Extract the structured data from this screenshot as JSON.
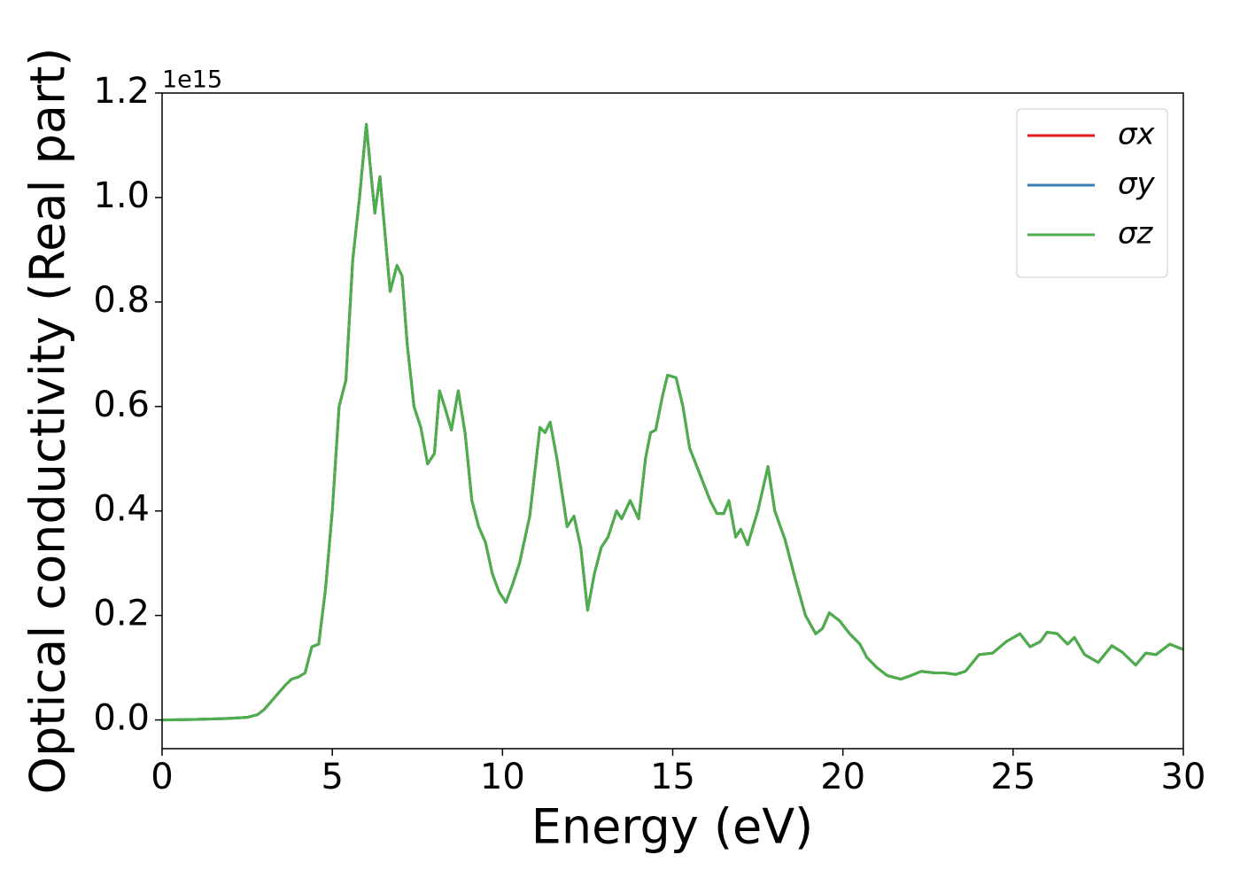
{
  "chart_data": {
    "type": "line",
    "xlabel": "Energy (eV)",
    "ylabel": "Optical conductivity (Real part)",
    "y_offset_label": "1e15",
    "xlim": [
      0,
      30
    ],
    "xticks": [
      0,
      5,
      10,
      15,
      20,
      25,
      30
    ],
    "ylim": [
      -0.055,
      1.2
    ],
    "yticks": [
      {
        "value": 0,
        "label": "0.0"
      },
      0.2,
      0.4,
      0.6,
      0.8,
      {
        "value": 1,
        "label": "1.0"
      },
      1.2
    ],
    "grid": false,
    "legend": "upper right",
    "x": [
      0,
      1,
      2,
      2.5,
      2.8,
      3.0,
      3.2,
      3.4,
      3.6,
      3.8,
      4.0,
      4.2,
      4.4,
      4.6,
      4.8,
      5.0,
      5.2,
      5.4,
      5.6,
      5.8,
      6.0,
      6.1,
      6.25,
      6.4,
      6.55,
      6.7,
      6.9,
      7.05,
      7.2,
      7.4,
      7.6,
      7.8,
      8.0,
      8.15,
      8.3,
      8.5,
      8.7,
      8.9,
      9.1,
      9.3,
      9.5,
      9.7,
      9.9,
      10.1,
      10.3,
      10.5,
      10.8,
      11.1,
      11.25,
      11.4,
      11.6,
      11.9,
      12.1,
      12.3,
      12.5,
      12.7,
      12.9,
      13.1,
      13.35,
      13.5,
      13.75,
      14.0,
      14.2,
      14.35,
      14.5,
      14.7,
      14.85,
      15.1,
      15.3,
      15.5,
      15.8,
      16.1,
      16.3,
      16.5,
      16.65,
      16.85,
      17.0,
      17.2,
      17.5,
      17.8,
      18.0,
      18.3,
      18.6,
      18.9,
      19.2,
      19.4,
      19.6,
      19.9,
      20.2,
      20.5,
      20.7,
      21.0,
      21.3,
      21.7,
      22.0,
      22.3,
      22.7,
      23.0,
      23.3,
      23.6,
      24.0,
      24.4,
      24.8,
      25.2,
      25.5,
      25.8,
      26.0,
      26.3,
      26.6,
      26.8,
      27.1,
      27.5,
      27.9,
      28.2,
      28.6,
      28.9,
      29.2,
      29.6,
      30.0
    ],
    "series": [
      {
        "name": "σx",
        "color": "#e41a1c",
        "values": [
          0,
          0.001,
          0.003,
          0.005,
          0.01,
          0.02,
          0.035,
          0.05,
          0.065,
          0.078,
          0.082,
          0.09,
          0.14,
          0.145,
          0.25,
          0.4,
          0.6,
          0.65,
          0.88,
          1.0,
          1.14,
          1.07,
          0.97,
          1.04,
          0.93,
          0.82,
          0.87,
          0.85,
          0.72,
          0.6,
          0.56,
          0.49,
          0.51,
          0.63,
          0.6,
          0.555,
          0.63,
          0.55,
          0.42,
          0.37,
          0.34,
          0.28,
          0.245,
          0.225,
          0.26,
          0.3,
          0.39,
          0.56,
          0.55,
          0.57,
          0.5,
          0.37,
          0.39,
          0.33,
          0.21,
          0.28,
          0.33,
          0.35,
          0.4,
          0.385,
          0.42,
          0.385,
          0.5,
          0.55,
          0.555,
          0.62,
          0.66,
          0.655,
          0.6,
          0.52,
          0.47,
          0.42,
          0.395,
          0.395,
          0.42,
          0.35,
          0.365,
          0.335,
          0.4,
          0.485,
          0.4,
          0.345,
          0.27,
          0.2,
          0.165,
          0.175,
          0.205,
          0.19,
          0.165,
          0.145,
          0.12,
          0.1,
          0.085,
          0.078,
          0.085,
          0.093,
          0.09,
          0.09,
          0.087,
          0.093,
          0.125,
          0.128,
          0.15,
          0.165,
          0.14,
          0.15,
          0.168,
          0.165,
          0.145,
          0.158,
          0.125,
          0.11,
          0.142,
          0.13,
          0.105,
          0.128,
          0.125,
          0.145,
          0.135
        ]
      },
      {
        "name": "σy",
        "color": "#377eb8",
        "values": [
          0,
          0.001,
          0.003,
          0.005,
          0.01,
          0.02,
          0.035,
          0.05,
          0.065,
          0.078,
          0.082,
          0.09,
          0.14,
          0.145,
          0.25,
          0.4,
          0.6,
          0.65,
          0.88,
          1.0,
          1.14,
          1.07,
          0.97,
          1.04,
          0.93,
          0.82,
          0.87,
          0.85,
          0.72,
          0.6,
          0.56,
          0.49,
          0.51,
          0.63,
          0.6,
          0.555,
          0.63,
          0.55,
          0.42,
          0.37,
          0.34,
          0.28,
          0.245,
          0.225,
          0.26,
          0.3,
          0.39,
          0.56,
          0.55,
          0.57,
          0.5,
          0.37,
          0.39,
          0.33,
          0.21,
          0.28,
          0.33,
          0.35,
          0.4,
          0.385,
          0.42,
          0.385,
          0.5,
          0.55,
          0.555,
          0.62,
          0.66,
          0.655,
          0.6,
          0.52,
          0.47,
          0.42,
          0.395,
          0.395,
          0.42,
          0.35,
          0.365,
          0.335,
          0.4,
          0.485,
          0.4,
          0.345,
          0.27,
          0.2,
          0.165,
          0.175,
          0.205,
          0.19,
          0.165,
          0.145,
          0.12,
          0.1,
          0.085,
          0.078,
          0.085,
          0.093,
          0.09,
          0.09,
          0.087,
          0.093,
          0.125,
          0.128,
          0.15,
          0.165,
          0.14,
          0.15,
          0.168,
          0.165,
          0.145,
          0.158,
          0.125,
          0.11,
          0.142,
          0.13,
          0.105,
          0.128,
          0.125,
          0.145,
          0.135
        ]
      },
      {
        "name": "σz",
        "color": "#4daf4a",
        "values": [
          0,
          0.001,
          0.003,
          0.005,
          0.01,
          0.02,
          0.035,
          0.05,
          0.065,
          0.078,
          0.082,
          0.09,
          0.14,
          0.145,
          0.25,
          0.4,
          0.6,
          0.65,
          0.88,
          1.0,
          1.14,
          1.07,
          0.97,
          1.04,
          0.93,
          0.82,
          0.87,
          0.85,
          0.72,
          0.6,
          0.56,
          0.49,
          0.51,
          0.63,
          0.6,
          0.555,
          0.63,
          0.55,
          0.42,
          0.37,
          0.34,
          0.28,
          0.245,
          0.225,
          0.26,
          0.3,
          0.39,
          0.56,
          0.55,
          0.57,
          0.5,
          0.37,
          0.39,
          0.33,
          0.21,
          0.28,
          0.33,
          0.35,
          0.4,
          0.385,
          0.42,
          0.385,
          0.5,
          0.55,
          0.555,
          0.62,
          0.66,
          0.655,
          0.6,
          0.52,
          0.47,
          0.42,
          0.395,
          0.395,
          0.42,
          0.35,
          0.365,
          0.335,
          0.4,
          0.485,
          0.4,
          0.345,
          0.27,
          0.2,
          0.165,
          0.175,
          0.205,
          0.19,
          0.165,
          0.145,
          0.12,
          0.1,
          0.085,
          0.078,
          0.085,
          0.093,
          0.09,
          0.09,
          0.087,
          0.093,
          0.125,
          0.128,
          0.15,
          0.165,
          0.14,
          0.15,
          0.168,
          0.165,
          0.145,
          0.158,
          0.125,
          0.11,
          0.142,
          0.13,
          0.105,
          0.128,
          0.125,
          0.145,
          0.135
        ]
      }
    ]
  }
}
